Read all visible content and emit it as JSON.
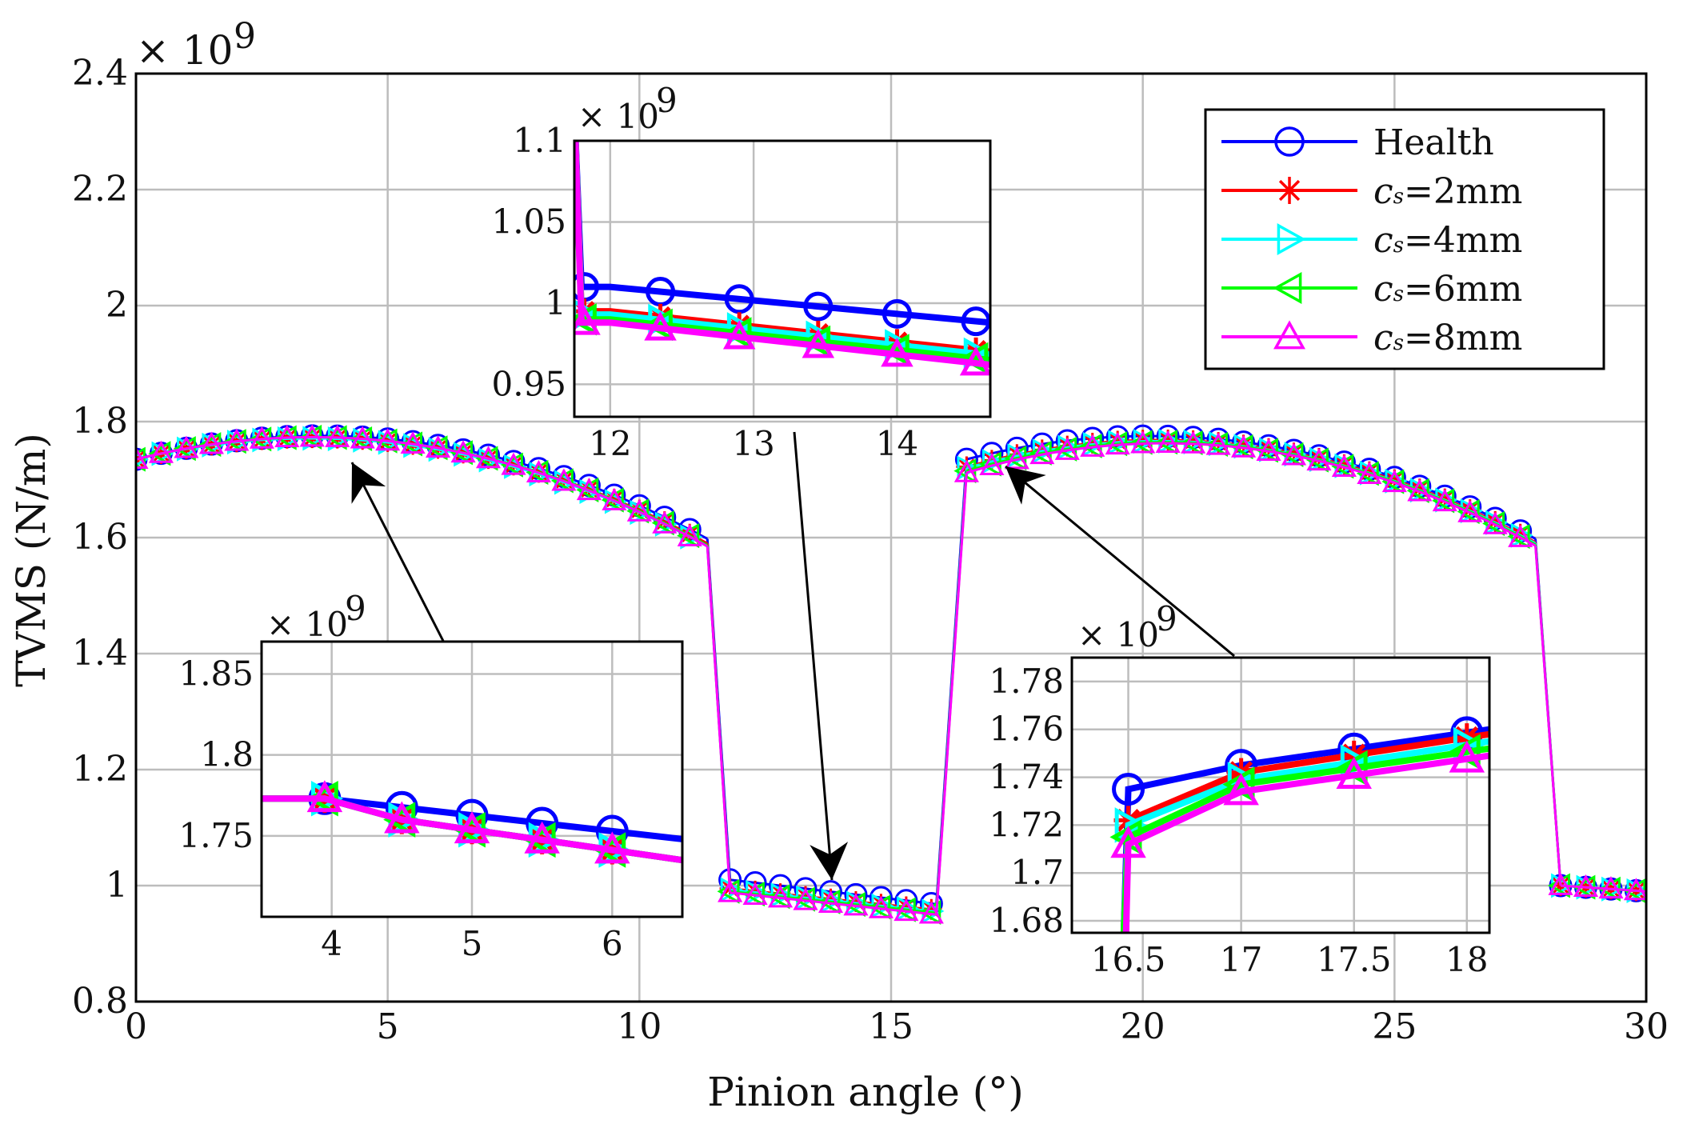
{
  "chart_data": [
    {
      "id": "main",
      "type": "line",
      "xlabel": "Pinion angle (°)",
      "ylabel": "TVMS (N/m)",
      "xlim": [
        0,
        30
      ],
      "ylim": [
        0.8,
        2.4
      ],
      "xticks": [
        0,
        5,
        10,
        15,
        20,
        25,
        30
      ],
      "yticks": [
        0.8,
        1,
        1.2,
        1.4,
        1.6,
        1.8,
        2,
        2.2,
        2.4
      ],
      "xtick_labels": [
        "0",
        "5",
        "10",
        "15",
        "20",
        "25",
        "30"
      ],
      "ytick_labels": [
        "0.8",
        "1",
        "1.2",
        "1.4",
        "1.6",
        "1.8",
        "2",
        "2.2",
        "2.4"
      ],
      "exponent_label": "× 10",
      "exponent": "9",
      "grid": true,
      "legend_position": "top-right",
      "series": [
        {
          "name": "Health",
          "prefix": "",
          "suffix": "",
          "color": "#0000ff",
          "marker": "circle",
          "segments": [
            {
              "x": [
                0.0,
                3.3,
                11.35
              ],
              "y": [
                1.735,
                1.775,
                1.598
              ]
            },
            {
              "x": [
                11.35,
                11.8
              ],
              "y": [
                1.598,
                1.01
              ]
            },
            {
              "x": [
                11.8,
                15.9
              ],
              "y": [
                1.01,
                0.968
              ]
            },
            {
              "x": [
                15.9,
                16.5
              ],
              "y": [
                0.968,
                1.735
              ]
            },
            {
              "x": [
                16.5,
                20.0,
                27.8
              ],
              "y": [
                1.735,
                1.775,
                1.598
              ]
            },
            {
              "x": [
                27.8,
                28.3
              ],
              "y": [
                1.598,
                1.0
              ]
            },
            {
              "x": [
                28.3,
                30.0
              ],
              "y": [
                1.0,
                0.99
              ]
            }
          ]
        },
        {
          "name": "=2mm",
          "prefix": "c",
          "suffix": "s",
          "color": "#ff0000",
          "marker": "star",
          "segments": [
            {
              "x": [
                0.0,
                3.3,
                11.35
              ],
              "y": [
                1.735,
                1.772,
                1.59
              ]
            },
            {
              "x": [
                11.35,
                11.8
              ],
              "y": [
                1.59,
                0.995
              ]
            },
            {
              "x": [
                11.8,
                15.9
              ],
              "y": [
                0.995,
                0.958
              ]
            },
            {
              "x": [
                15.9,
                16.5
              ],
              "y": [
                0.958,
                1.722
              ]
            },
            {
              "x": [
                16.5,
                20.0,
                27.8
              ],
              "y": [
                1.722,
                1.768,
                1.592
              ]
            },
            {
              "x": [
                27.8,
                28.3
              ],
              "y": [
                1.592,
                1.0
              ]
            },
            {
              "x": [
                28.3,
                30.0
              ],
              "y": [
                1.0,
                0.99
              ]
            }
          ]
        },
        {
          "name": "=4mm",
          "prefix": "c",
          "suffix": "s",
          "color": "#00ffff",
          "marker": "triangle-right",
          "segments": [
            {
              "x": [
                0.0,
                3.3,
                11.35
              ],
              "y": [
                1.735,
                1.771,
                1.585
              ]
            },
            {
              "x": [
                11.35,
                11.8
              ],
              "y": [
                1.585,
                0.993
              ]
            },
            {
              "x": [
                11.8,
                15.9
              ],
              "y": [
                0.993,
                0.955
              ]
            },
            {
              "x": [
                15.9,
                16.5
              ],
              "y": [
                0.955,
                1.72
              ]
            },
            {
              "x": [
                16.5,
                20.0,
                27.8
              ],
              "y": [
                1.72,
                1.766,
                1.59
              ]
            },
            {
              "x": [
                27.8,
                28.3
              ],
              "y": [
                1.59,
                1.0
              ]
            },
            {
              "x": [
                28.3,
                30.0
              ],
              "y": [
                1.0,
                0.99
              ]
            }
          ]
        },
        {
          "name": "=6mm",
          "prefix": "c",
          "suffix": "s",
          "color": "#00ff00",
          "marker": "triangle-left",
          "segments": [
            {
              "x": [
                0.0,
                3.3,
                11.35
              ],
              "y": [
                1.735,
                1.773,
                1.587
              ]
            },
            {
              "x": [
                11.35,
                11.8
              ],
              "y": [
                1.587,
                0.99
              ]
            },
            {
              "x": [
                11.8,
                15.9
              ],
              "y": [
                0.99,
                0.953
              ]
            },
            {
              "x": [
                15.9,
                16.5
              ],
              "y": [
                0.953,
                1.715
              ]
            },
            {
              "x": [
                16.5,
                20.0,
                27.8
              ],
              "y": [
                1.715,
                1.764,
                1.588
              ]
            },
            {
              "x": [
                27.8,
                28.3
              ],
              "y": [
                1.588,
                1.0
              ]
            },
            {
              "x": [
                28.3,
                30.0
              ],
              "y": [
                1.0,
                0.99
              ]
            }
          ]
        },
        {
          "name": "=8mm",
          "prefix": "c",
          "suffix": "s",
          "color": "#ff00ff",
          "marker": "triangle-up",
          "segments": [
            {
              "x": [
                0.0,
                3.3,
                11.35
              ],
              "y": [
                1.735,
                1.773,
                1.585
              ]
            },
            {
              "x": [
                11.35,
                11.8
              ],
              "y": [
                1.585,
                0.988
              ]
            },
            {
              "x": [
                11.8,
                15.9
              ],
              "y": [
                0.988,
                0.95
              ]
            },
            {
              "x": [
                15.9,
                16.5
              ],
              "y": [
                0.95,
                1.712
              ]
            },
            {
              "x": [
                16.5,
                20.0,
                27.8
              ],
              "y": [
                1.712,
                1.762,
                1.586
              ]
            },
            {
              "x": [
                27.8,
                28.3
              ],
              "y": [
                1.586,
                1.0
              ]
            },
            {
              "x": [
                28.3,
                30.0
              ],
              "y": [
                1.0,
                0.99
              ]
            }
          ]
        }
      ]
    },
    {
      "id": "inset-top",
      "type": "line",
      "xlim": [
        11.75,
        14.65
      ],
      "ylim": [
        0.93,
        1.1
      ],
      "xticks": [
        12,
        13,
        14
      ],
      "yticks": [
        0.95,
        1,
        1.05,
        1.1
      ],
      "xtick_labels": [
        "12",
        "13",
        "14"
      ],
      "ytick_labels": [
        "0.95",
        "1",
        "1.05",
        "1.1"
      ],
      "exponent_label": "× 10",
      "exponent": "9",
      "grid": true,
      "series": [
        {
          "name": "Health",
          "x": [
            11.75,
            11.8,
            12.0,
            14.65
          ],
          "y": [
            1.12,
            1.01,
            1.01,
            0.988
          ]
        },
        {
          "name": "=2mm",
          "x": [
            11.75,
            11.8,
            12.0,
            14.65
          ],
          "y": [
            1.12,
            0.995,
            0.995,
            0.97
          ]
        },
        {
          "name": "=4mm",
          "x": [
            11.75,
            11.8,
            12.0,
            14.65
          ],
          "y": [
            1.12,
            0.993,
            0.993,
            0.968
          ]
        },
        {
          "name": "=6mm",
          "x": [
            11.75,
            11.8,
            12.0,
            14.65
          ],
          "y": [
            1.12,
            0.99,
            0.99,
            0.965
          ]
        },
        {
          "name": "=8mm",
          "x": [
            11.75,
            11.8,
            12.0,
            14.65
          ],
          "y": [
            1.12,
            0.988,
            0.988,
            0.962
          ]
        }
      ]
    },
    {
      "id": "inset-left",
      "type": "line",
      "xlim": [
        3.5,
        6.5
      ],
      "ylim": [
        1.7,
        1.87
      ],
      "xticks": [
        4,
        5,
        6
      ],
      "yticks": [
        1.75,
        1.8,
        1.85
      ],
      "xtick_labels": [
        "4",
        "5",
        "6"
      ],
      "ytick_labels": [
        "1.75",
        "1.8",
        "1.85"
      ],
      "exponent_label": "× 10",
      "exponent": "9",
      "grid": true,
      "series": [
        {
          "name": "Health",
          "x": [
            3.5,
            3.95,
            6.5
          ],
          "y": [
            1.773,
            1.773,
            1.748
          ]
        },
        {
          "name": "=2mm",
          "x": [
            3.5,
            3.95,
            4.5,
            6.5
          ],
          "y": [
            1.773,
            1.773,
            1.76,
            1.735
          ]
        },
        {
          "name": "=4mm",
          "x": [
            3.5,
            3.95,
            4.5,
            6.5
          ],
          "y": [
            1.773,
            1.773,
            1.76,
            1.735
          ]
        },
        {
          "name": "=6mm",
          "x": [
            3.5,
            3.95,
            4.5,
            6.5
          ],
          "y": [
            1.773,
            1.773,
            1.76,
            1.735
          ]
        },
        {
          "name": "=8mm",
          "x": [
            3.5,
            3.95,
            4.5,
            6.5
          ],
          "y": [
            1.773,
            1.773,
            1.76,
            1.735
          ]
        }
      ]
    },
    {
      "id": "inset-right",
      "type": "line",
      "xlim": [
        16.25,
        18.1
      ],
      "ylim": [
        1.675,
        1.79
      ],
      "xticks": [
        16.5,
        17,
        17.5,
        18
      ],
      "yticks": [
        1.68,
        1.7,
        1.72,
        1.74,
        1.76,
        1.78
      ],
      "xtick_labels": [
        "16.5",
        "17",
        "17.5",
        "18"
      ],
      "ytick_labels": [
        "1.68",
        "1.7",
        "1.72",
        "1.74",
        "1.76",
        "1.78"
      ],
      "exponent_label": "× 10",
      "exponent": "9",
      "grid": true,
      "series": [
        {
          "name": "Health",
          "x": [
            16.48,
            16.5,
            17.0,
            18.1
          ],
          "y": [
            1.675,
            1.735,
            1.745,
            1.76
          ]
        },
        {
          "name": "=2mm",
          "x": [
            16.48,
            16.5,
            17.0,
            18.1
          ],
          "y": [
            1.675,
            1.722,
            1.742,
            1.758
          ]
        },
        {
          "name": "=4mm",
          "x": [
            16.48,
            16.5,
            17.0,
            18.1
          ],
          "y": [
            1.675,
            1.72,
            1.739,
            1.755
          ]
        },
        {
          "name": "=6mm",
          "x": [
            16.48,
            16.5,
            17.0,
            18.1
          ],
          "y": [
            1.675,
            1.715,
            1.737,
            1.752
          ]
        },
        {
          "name": "=8mm",
          "x": [
            16.49,
            16.5,
            17.0,
            18.1
          ],
          "y": [
            1.675,
            1.712,
            1.734,
            1.749
          ]
        }
      ]
    }
  ]
}
